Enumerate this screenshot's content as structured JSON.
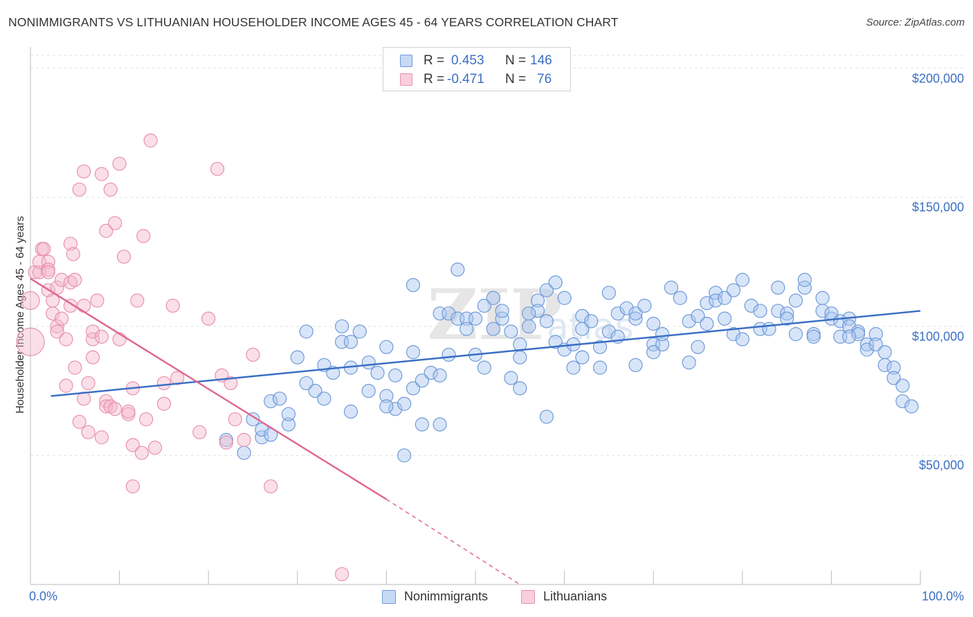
{
  "title": "NONIMMIGRANTS VS LITHUANIAN HOUSEHOLDER INCOME AGES 45 - 64 YEARS CORRELATION CHART",
  "source": "Source: ZipAtlas.com",
  "colors": {
    "blue": "#3b6fc4",
    "blue_fill": "#a9c6f0",
    "pink": "#e06890",
    "pink_fill": "#f5b9cc"
  },
  "legend": {
    "rows": [
      {
        "r_label": "R = ",
        "r_value": "0.453",
        "n_label": "N = ",
        "n_value": "146"
      },
      {
        "r_label": "R = ",
        "r_value": "-0.471",
        "n_label": "N = ",
        "n_value": "76"
      }
    ]
  },
  "bottom_legend": [
    "Nonimmigrants",
    "Lithuanians"
  ],
  "chart_data": {
    "type": "scatter",
    "title": "NONIMMIGRANTS VS LITHUANIAN HOUSEHOLDER INCOME AGES 45 - 64 YEARS CORRELATION CHART",
    "xlabel": "",
    "ylabel": "Householder Income Ages 45 - 64 years",
    "xlim": [
      0,
      100
    ],
    "ylim": [
      0,
      205000
    ],
    "x_tick_labels": [
      "0.0%",
      "100.0%"
    ],
    "y_ticks": [
      50000,
      100000,
      150000,
      200000
    ],
    "y_tick_labels": [
      "$50,000",
      "$100,000",
      "$150,000",
      "$200,000"
    ],
    "grid": true,
    "legend_position": "top-center",
    "series": [
      {
        "name": "Nonimmigrants",
        "r": 0.453,
        "n": 146,
        "trend": {
          "x": [
            2.3,
            100
          ],
          "y": [
            73000,
            106000
          ],
          "dashed_from_x": null
        },
        "points": [
          [
            22,
            56000
          ],
          [
            24,
            51000
          ],
          [
            25,
            64000
          ],
          [
            26,
            57000
          ],
          [
            26,
            60000
          ],
          [
            27,
            58000
          ],
          [
            27,
            71000
          ],
          [
            28,
            72000
          ],
          [
            29,
            62000
          ],
          [
            29,
            66000
          ],
          [
            30,
            88000
          ],
          [
            31,
            98000
          ],
          [
            31,
            78000
          ],
          [
            32,
            75000
          ],
          [
            33,
            85000
          ],
          [
            34,
            82000
          ],
          [
            35,
            94000
          ],
          [
            35,
            100000
          ],
          [
            36,
            94000
          ],
          [
            36,
            67000
          ],
          [
            37,
            98000
          ],
          [
            38,
            75000
          ],
          [
            38,
            86000
          ],
          [
            39,
            82000
          ],
          [
            40,
            73000
          ],
          [
            40,
            92000
          ],
          [
            41,
            68000
          ],
          [
            41,
            81000
          ],
          [
            42,
            70000
          ],
          [
            42,
            50000
          ],
          [
            43,
            76000
          ],
          [
            43,
            90000
          ],
          [
            43,
            116000
          ],
          [
            44,
            62000
          ],
          [
            44,
            79000
          ],
          [
            45,
            82000
          ],
          [
            46,
            81000
          ],
          [
            46,
            105000
          ],
          [
            47,
            105000
          ],
          [
            47,
            89000
          ],
          [
            48,
            103000
          ],
          [
            49,
            103000
          ],
          [
            49,
            99000
          ],
          [
            50,
            103000
          ],
          [
            50,
            89000
          ],
          [
            51,
            84000
          ],
          [
            51,
            108000
          ],
          [
            52,
            99000
          ],
          [
            52,
            111000
          ],
          [
            53,
            103000
          ],
          [
            53,
            106000
          ],
          [
            54,
            80000
          ],
          [
            55,
            76000
          ],
          [
            55,
            88000
          ],
          [
            55,
            93000
          ],
          [
            56,
            100000
          ],
          [
            57,
            110000
          ],
          [
            57,
            106000
          ],
          [
            58,
            102000
          ],
          [
            58,
            114000
          ],
          [
            59,
            117000
          ],
          [
            59,
            94000
          ],
          [
            60,
            111000
          ],
          [
            60,
            91000
          ],
          [
            61,
            84000
          ],
          [
            61,
            93000
          ],
          [
            62,
            99000
          ],
          [
            62,
            104000
          ],
          [
            63,
            102000
          ],
          [
            64,
            92000
          ],
          [
            64,
            84000
          ],
          [
            65,
            113000
          ],
          [
            65,
            98000
          ],
          [
            66,
            105000
          ],
          [
            67,
            107000
          ],
          [
            68,
            103000
          ],
          [
            68,
            105000
          ],
          [
            69,
            108000
          ],
          [
            70,
            101000
          ],
          [
            70,
            93000
          ],
          [
            71,
            93000
          ],
          [
            71,
            97000
          ],
          [
            72,
            115000
          ],
          [
            73,
            111000
          ],
          [
            74,
            102000
          ],
          [
            75,
            92000
          ],
          [
            75,
            104000
          ],
          [
            76,
            109000
          ],
          [
            76,
            101000
          ],
          [
            77,
            113000
          ],
          [
            77,
            110000
          ],
          [
            78,
            103000
          ],
          [
            78,
            111000
          ],
          [
            79,
            114000
          ],
          [
            79,
            97000
          ],
          [
            80,
            118000
          ],
          [
            81,
            108000
          ],
          [
            82,
            106000
          ],
          [
            82,
            99000
          ],
          [
            83,
            99000
          ],
          [
            84,
            115000
          ],
          [
            84,
            106000
          ],
          [
            85,
            105000
          ],
          [
            85,
            103000
          ],
          [
            86,
            110000
          ],
          [
            87,
            115000
          ],
          [
            87,
            118000
          ],
          [
            88,
            97000
          ],
          [
            88,
            96000
          ],
          [
            89,
            111000
          ],
          [
            89,
            106000
          ],
          [
            90,
            103000
          ],
          [
            90,
            105000
          ],
          [
            91,
            102000
          ],
          [
            91,
            96000
          ],
          [
            92,
            103000
          ],
          [
            92,
            100000
          ],
          [
            93,
            98000
          ],
          [
            93,
            97000
          ],
          [
            94,
            93000
          ],
          [
            94,
            91000
          ],
          [
            95,
            97000
          ],
          [
            95,
            93000
          ],
          [
            96,
            90000
          ],
          [
            96,
            85000
          ],
          [
            97,
            84000
          ],
          [
            97,
            80000
          ],
          [
            98,
            77000
          ],
          [
            98,
            71000
          ],
          [
            99,
            69000
          ],
          [
            48,
            122000
          ],
          [
            33,
            72000
          ],
          [
            36,
            84000
          ],
          [
            46,
            62000
          ],
          [
            58,
            65000
          ],
          [
            68,
            85000
          ],
          [
            74,
            86000
          ],
          [
            80,
            95000
          ],
          [
            86,
            97000
          ],
          [
            92,
            96000
          ],
          [
            40,
            69000
          ],
          [
            54,
            98000
          ],
          [
            62,
            88000
          ],
          [
            70,
            90000
          ],
          [
            56,
            105000
          ],
          [
            66,
            96000
          ]
        ]
      },
      {
        "name": "Lithuanians",
        "r": -0.471,
        "n": 76,
        "trend": {
          "x": [
            0,
            40
          ],
          "y": [
            118500,
            33000
          ],
          "dashed_to_x": 55,
          "dashed_to_y": 0
        },
        "points": [
          [
            0,
            94000
          ],
          [
            0,
            110000
          ],
          [
            0.5,
            121000
          ],
          [
            1,
            121000
          ],
          [
            1,
            125000
          ],
          [
            1.3,
            130000
          ],
          [
            1.5,
            130000
          ],
          [
            2,
            125000
          ],
          [
            2,
            122000
          ],
          [
            2,
            121000
          ],
          [
            2,
            114000
          ],
          [
            2.5,
            110000
          ],
          [
            2.5,
            105000
          ],
          [
            3,
            115000
          ],
          [
            3,
            100000
          ],
          [
            3,
            98000
          ],
          [
            3.5,
            118000
          ],
          [
            3.5,
            103000
          ],
          [
            4,
            95000
          ],
          [
            4,
            77000
          ],
          [
            4.5,
            108000
          ],
          [
            4.5,
            117000
          ],
          [
            4.5,
            132000
          ],
          [
            4.8,
            128000
          ],
          [
            5,
            118000
          ],
          [
            5,
            84000
          ],
          [
            5.5,
            63000
          ],
          [
            5.5,
            153000
          ],
          [
            6,
            160000
          ],
          [
            6,
            108000
          ],
          [
            6,
            72000
          ],
          [
            6.5,
            59000
          ],
          [
            6.5,
            78000
          ],
          [
            7,
            88000
          ],
          [
            7,
            95000
          ],
          [
            7,
            98000
          ],
          [
            7.5,
            110000
          ],
          [
            8,
            57000
          ],
          [
            8,
            96000
          ],
          [
            8,
            159000
          ],
          [
            8.5,
            137000
          ],
          [
            8.5,
            71000
          ],
          [
            8.5,
            69000
          ],
          [
            9,
            153000
          ],
          [
            9,
            69000
          ],
          [
            9.5,
            68000
          ],
          [
            9.5,
            140000
          ],
          [
            10,
            95000
          ],
          [
            10,
            163000
          ],
          [
            10.5,
            127000
          ],
          [
            11,
            66000
          ],
          [
            11,
            67000
          ],
          [
            11.5,
            76000
          ],
          [
            11.5,
            38000
          ],
          [
            11.5,
            54000
          ],
          [
            12,
            110000
          ],
          [
            12.5,
            51000
          ],
          [
            12.7,
            135000
          ],
          [
            13,
            64000
          ],
          [
            13.5,
            172000
          ],
          [
            14,
            53000
          ],
          [
            15,
            70000
          ],
          [
            16,
            108000
          ],
          [
            16.5,
            80000
          ],
          [
            19,
            59000
          ],
          [
            20,
            103000
          ],
          [
            21,
            161000
          ],
          [
            21.5,
            81000
          ],
          [
            22,
            55000
          ],
          [
            22.5,
            78000
          ],
          [
            23,
            64000
          ],
          [
            24,
            56000
          ],
          [
            25,
            89000
          ],
          [
            27,
            38000
          ],
          [
            35,
            4000
          ],
          [
            15,
            78000
          ]
        ]
      }
    ]
  }
}
